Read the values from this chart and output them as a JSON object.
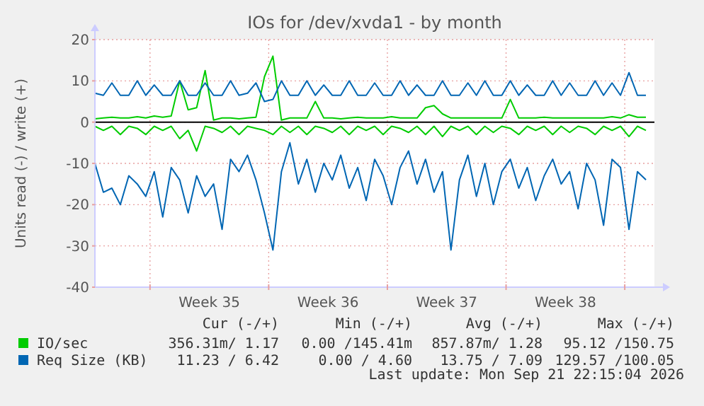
{
  "chart_data": {
    "type": "line",
    "title": "IOs for /dev/xvda1 - by month",
    "ylabel": "Units read (-) / write (+)",
    "x": [
      "2026-08-20T18:00",
      "2026-08-21T06:00",
      "2026-08-21T18:00",
      "2026-08-22T06:00",
      "2026-08-22T18:00",
      "2026-08-23T06:00",
      "2026-08-23T18:00",
      "2026-08-24T06:00",
      "2026-08-24T18:00",
      "2026-08-25T06:00",
      "2026-08-25T18:00",
      "2026-08-26T06:00",
      "2026-08-26T18:00",
      "2026-08-27T06:00",
      "2026-08-27T18:00",
      "2026-08-28T06:00",
      "2026-08-28T18:00",
      "2026-08-29T06:00",
      "2026-08-29T18:00",
      "2026-08-30T06:00",
      "2026-08-30T18:00",
      "2026-08-31T06:00",
      "2026-08-31T18:00",
      "2026-09-01T06:00",
      "2026-09-01T18:00",
      "2026-09-02T06:00",
      "2026-09-02T18:00",
      "2026-09-03T06:00",
      "2026-09-03T18:00",
      "2026-09-04T06:00",
      "2026-09-04T18:00",
      "2026-09-05T06:00",
      "2026-09-05T18:00",
      "2026-09-06T06:00",
      "2026-09-06T18:00",
      "2026-09-07T06:00",
      "2026-09-07T18:00",
      "2026-09-08T06:00",
      "2026-09-08T18:00",
      "2026-09-09T06:00",
      "2026-09-09T18:00",
      "2026-09-10T06:00",
      "2026-09-10T18:00",
      "2026-09-11T06:00",
      "2026-09-11T18:00",
      "2026-09-12T06:00",
      "2026-09-12T18:00",
      "2026-09-13T06:00",
      "2026-09-13T18:00",
      "2026-09-14T06:00",
      "2026-09-14T18:00",
      "2026-09-15T06:00",
      "2026-09-15T18:00",
      "2026-09-16T06:00",
      "2026-09-16T18:00",
      "2026-09-17T06:00",
      "2026-09-17T18:00",
      "2026-09-18T06:00",
      "2026-09-18T18:00",
      "2026-09-19T06:00",
      "2026-09-19T18:00",
      "2026-09-20T06:00",
      "2026-09-20T18:00",
      "2026-09-21T06:00",
      "2026-09-21T18:00",
      "2026-09-22T06:00"
    ],
    "series": [
      {
        "name": "IO/sec",
        "color": "#00cc00",
        "values": [
          0.8,
          1,
          1.2,
          1,
          1,
          1.3,
          1,
          1.5,
          1.2,
          1.5,
          10,
          3,
          3.5,
          12.5,
          0.5,
          1,
          1,
          0.8,
          1,
          1.2,
          11,
          16,
          0.5,
          1,
          1,
          1,
          5,
          1,
          1,
          0.8,
          1,
          1.2,
          1,
          1,
          1,
          1.3,
          1,
          1,
          1,
          3.5,
          4,
          2,
          1,
          1,
          1,
          1,
          1,
          1,
          1,
          5.5,
          1,
          1,
          1,
          1.2,
          1,
          1,
          1,
          1,
          1,
          1,
          1,
          1.3,
          1,
          1.8,
          1.2,
          1.2
        ]
      },
      {
        "color": "#00cc00",
        "values": [
          -1,
          -2,
          -1,
          -3,
          -1,
          -1.5,
          -3,
          -1,
          -2,
          -1,
          -4,
          -2,
          -7,
          -1,
          -1.5,
          -2.5,
          -1,
          -3,
          -1,
          -1.5,
          -2,
          -3,
          -1,
          -2.5,
          -1,
          -3,
          -1,
          -1.5,
          -2.5,
          -1,
          -3,
          -1,
          -2,
          -1,
          -3,
          -1,
          -1.5,
          -2.5,
          -1,
          -3,
          -1,
          -3.5,
          -1,
          -2,
          -1,
          -3,
          -1,
          -2.5,
          -1,
          -1.5,
          -3,
          -1,
          -2,
          -1,
          -3,
          -1,
          -2.5,
          -1,
          -1.5,
          -3,
          -1,
          -2,
          -1,
          -3.5,
          -1,
          -2
        ]
      },
      {
        "name": "Req Size (KB)",
        "color": "#0066b3",
        "values": [
          7,
          6.5,
          9.5,
          6.5,
          6.5,
          10,
          6.5,
          9,
          6.5,
          6.5,
          10,
          6.5,
          6.5,
          9.5,
          6.5,
          6.5,
          10,
          6.5,
          7,
          9.5,
          5,
          5.5,
          10,
          6.5,
          6.5,
          10,
          6.5,
          9,
          6.5,
          6.5,
          10,
          6.5,
          6.5,
          9.5,
          6.5,
          6.5,
          10,
          6.5,
          9,
          6.5,
          6.5,
          10,
          6.5,
          6.5,
          9.5,
          6.5,
          10,
          6.5,
          6.5,
          10,
          6.5,
          9,
          6.5,
          6.5,
          10,
          6.5,
          9.5,
          6.5,
          6.5,
          10,
          6.5,
          9.5,
          6.5,
          12,
          6.5,
          6.5
        ]
      },
      {
        "color": "#0066b3",
        "values": [
          -10,
          -17,
          -16,
          -20,
          -13,
          -15,
          -18,
          -12,
          -23,
          -11,
          -14,
          -22,
          -13,
          -18,
          -15,
          -26,
          -9,
          -12,
          -8,
          -14,
          -22,
          -31,
          -12,
          -5,
          -15,
          -9,
          -17,
          -10,
          -14,
          -8,
          -16,
          -11,
          -19,
          -9,
          -13,
          -20,
          -11,
          -7,
          -15,
          -9,
          -17,
          -12,
          -31,
          -14,
          -8,
          -18,
          -10,
          -20,
          -12,
          -9,
          -16,
          -11,
          -19,
          -13,
          -9,
          -15,
          -12,
          -21,
          -10,
          -14,
          -25,
          -9,
          -11,
          -26,
          -12,
          -14
        ]
      }
    ],
    "xlim": [
      "2026-08-20T18:00",
      "2026-09-22T18:00"
    ],
    "xticks": [
      {
        "value": "2026-08-24",
        "label": null
      },
      {
        "value": "2026-08-27T12:00",
        "label": "Week 35"
      },
      {
        "value": "2026-08-31",
        "label": null
      },
      {
        "value": "2026-09-03T12:00",
        "label": "Week 36"
      },
      {
        "value": "2026-09-07",
        "label": null
      },
      {
        "value": "2026-09-10T12:00",
        "label": "Week 37"
      },
      {
        "value": "2026-09-14",
        "label": null
      },
      {
        "value": "2026-09-17T12:00",
        "label": "Week 38"
      },
      {
        "value": "2026-09-21",
        "label": null
      }
    ],
    "ylim": [
      -40,
      20
    ],
    "yticks": [
      -40,
      -30,
      -20,
      -10,
      0,
      10,
      20
    ],
    "ref_lines": [
      {
        "axis": "y",
        "value": 0,
        "color": "#000000"
      }
    ],
    "grid": true,
    "legend": "bottom",
    "line_style": "solid",
    "marker": "none",
    "annotations": [
      "Cur (-/+)",
      "Min (-/+)",
      "Avg (-/+)",
      "Max (-/+)",
      "356.31m/ 1.17",
      "0.00 /145.41m",
      "857.87m/ 1.28",
      "95.12 /150.75",
      "11.23 / 6.42",
      "0.00 / 4.60",
      "13.75 / 7.09",
      "129.57 /100.05",
      "Last update: Mon Sep 21 22:15:04 2026"
    ]
  }
}
